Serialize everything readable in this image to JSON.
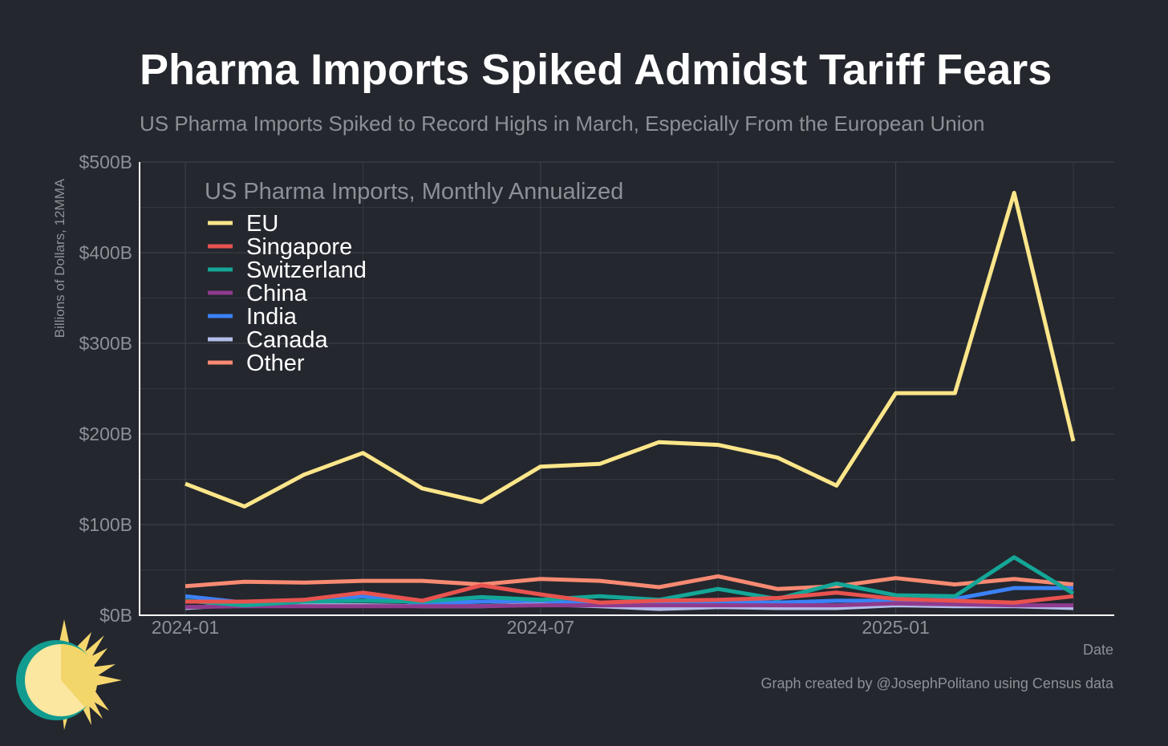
{
  "title": "Pharma Imports Spiked Admidst Tariff Fears",
  "subtitle": "US Pharma Imports Spiked to Record Highs in March, Especially From the European Union",
  "credit": "Graph created by @JosephPolitano using Census data",
  "colors": {
    "background": "#24272e",
    "grid": "#3a3e46",
    "axis": "#ffffff",
    "muted": "#8d9096"
  },
  "chart_data": {
    "type": "line",
    "legend_title": "US Pharma Imports, Monthly Annualized",
    "legend_position": "top-left",
    "ylabel": "Billions of Dollars, 12MMA",
    "xlabel": "Date",
    "ylim": [
      0,
      500
    ],
    "y_ticks": [
      0,
      100,
      200,
      300,
      400,
      500
    ],
    "y_tick_labels": [
      "$0B",
      "$100B",
      "$200B",
      "$300B",
      "$400B",
      "$500B"
    ],
    "x": [
      "2024-01",
      "2024-02",
      "2024-03",
      "2024-04",
      "2024-05",
      "2024-06",
      "2024-07",
      "2024-08",
      "2024-09",
      "2024-10",
      "2024-11",
      "2024-12",
      "2025-01",
      "2025-02",
      "2025-03",
      "2025-04"
    ],
    "x_tick_labels": [
      "2024-01",
      "2024-07",
      "2025-01"
    ],
    "series": [
      {
        "name": "EU",
        "color": "#fde68a",
        "values": [
          145,
          120,
          155,
          179,
          140,
          125,
          164,
          167,
          191,
          188,
          174,
          143,
          245,
          245,
          466,
          192
        ]
      },
      {
        "name": "Singapore",
        "color": "#e8534f",
        "values": [
          15,
          15,
          17,
          25,
          16,
          33,
          23,
          14,
          16,
          17,
          19,
          25,
          18,
          16,
          14,
          21
        ]
      },
      {
        "name": "Switzerland",
        "color": "#14a697",
        "values": [
          16,
          11,
          15,
          16,
          15,
          20,
          17,
          21,
          17,
          29,
          18,
          35,
          22,
          21,
          64,
          24
        ]
      },
      {
        "name": "China",
        "color": "#8e3b8e",
        "values": [
          9,
          10,
          10,
          10,
          10,
          10,
          11,
          11,
          11,
          11,
          11,
          11,
          13,
          12,
          11,
          11
        ]
      },
      {
        "name": "India",
        "color": "#3b82f6",
        "values": [
          21,
          14,
          16,
          21,
          13,
          15,
          16,
          12,
          12,
          15,
          14,
          16,
          16,
          18,
          30,
          30
        ]
      },
      {
        "name": "Canada",
        "color": "#b4bde9",
        "values": [
          8,
          12,
          11,
          11,
          10,
          10,
          12,
          10,
          7,
          9,
          8,
          8,
          11,
          10,
          10,
          8
        ]
      },
      {
        "name": "Other",
        "color": "#f78a72",
        "values": [
          32,
          37,
          36,
          38,
          38,
          34,
          40,
          38,
          31,
          43,
          29,
          32,
          41,
          34,
          40,
          34
        ]
      }
    ]
  }
}
